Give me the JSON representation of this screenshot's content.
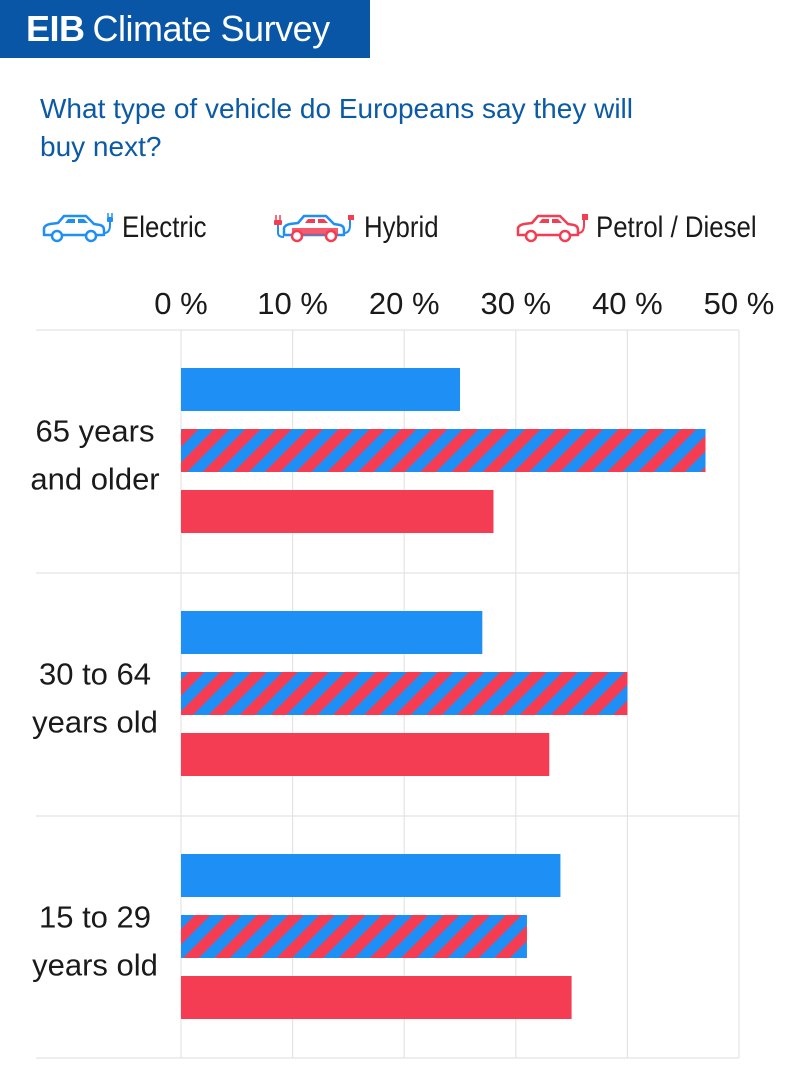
{
  "brand": {
    "part1": "EIB",
    "part2": "Climate Survey"
  },
  "subtitle": "What type of vehicle do Europeans say they will buy next?",
  "legend": [
    {
      "label": "Electric",
      "icon": "electric-car-icon"
    },
    {
      "label": "Hybrid",
      "icon": "hybrid-car-icon"
    },
    {
      "label": "Petrol / Diesel",
      "icon": "petrol-car-icon"
    }
  ],
  "colors": {
    "electric": "#1e90f5",
    "petrol": "#f43d52",
    "brand": "#0a56a6",
    "subtitle": "#0b5aa5"
  },
  "chart_data": {
    "type": "bar",
    "orientation": "horizontal",
    "categories": [
      [
        "65 years",
        "and older"
      ],
      [
        "30 to 64",
        "years old"
      ],
      [
        "15 to 29",
        "years old"
      ]
    ],
    "series": [
      {
        "name": "Electric",
        "values": [
          25,
          27,
          34
        ],
        "style": "solid-blue"
      },
      {
        "name": "Hybrid",
        "values": [
          47,
          40,
          31
        ],
        "style": "striped-red-blue"
      },
      {
        "name": "Petrol / Diesel",
        "values": [
          28,
          33,
          35
        ],
        "style": "solid-red"
      }
    ],
    "xlim": [
      0,
      50
    ],
    "xticks": [
      "0 %",
      "10 %",
      "20 %",
      "30 %",
      "40 %",
      "50 %"
    ],
    "xtick_values": [
      0,
      10,
      20,
      30,
      40,
      50
    ],
    "grid": true,
    "legend_position": "top"
  }
}
